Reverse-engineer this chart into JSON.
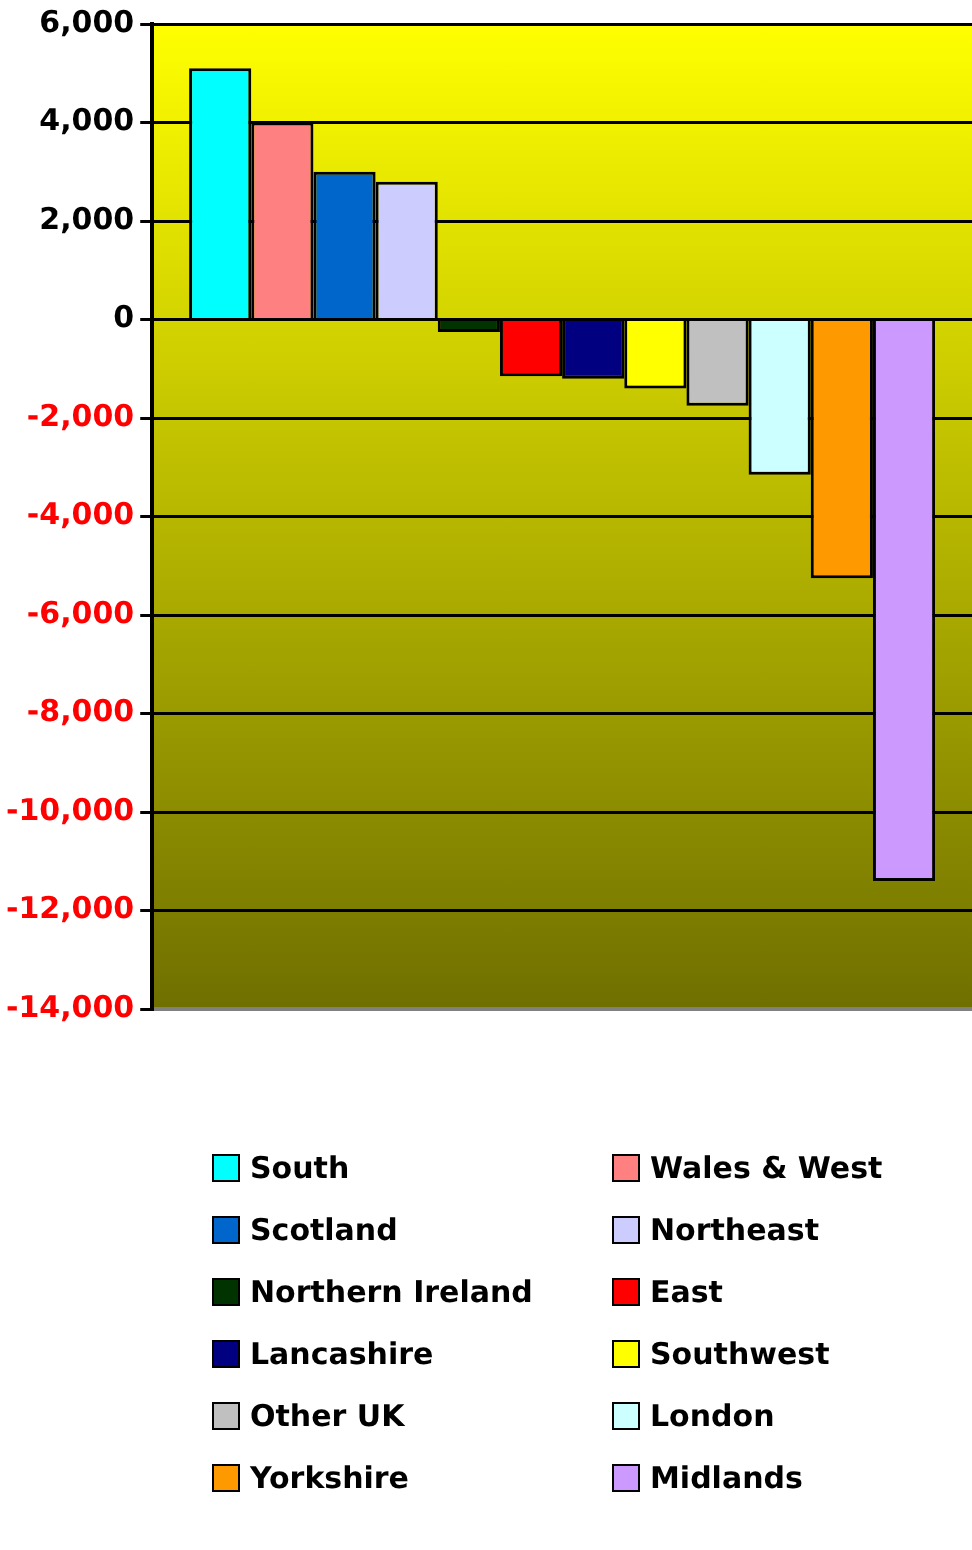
{
  "chart_data": {
    "type": "bar",
    "categories": [
      null
    ],
    "series": [
      {
        "name": "South",
        "color": "#00ffff",
        "values": [
          5100
        ]
      },
      {
        "name": "Wales & West",
        "color": "#ff8080",
        "values": [
          4000
        ]
      },
      {
        "name": "Scotland",
        "color": "#0066cc",
        "values": [
          3000
        ]
      },
      {
        "name": "Northeast",
        "color": "#ccccff",
        "values": [
          2800
        ]
      },
      {
        "name": "Northern Ireland",
        "color": "#003300",
        "values": [
          -250
        ]
      },
      {
        "name": "East",
        "color": "#ff0000",
        "values": [
          -1150
        ]
      },
      {
        "name": "Lancashire",
        "color": "#000080",
        "values": [
          -1200
        ]
      },
      {
        "name": "Southwest",
        "color": "#ffff00",
        "values": [
          -1400
        ]
      },
      {
        "name": "Other UK",
        "color": "#c0c0c0",
        "values": [
          -1750
        ]
      },
      {
        "name": "London",
        "color": "#ccffff",
        "values": [
          -3150
        ]
      },
      {
        "name": "Yorkshire",
        "color": "#ff9900",
        "values": [
          -5250
        ]
      },
      {
        "name": "Midlands",
        "color": "#cc99ff",
        "values": [
          -11400
        ]
      }
    ],
    "ylim": [
      -14000,
      6000
    ],
    "yticks": [
      {
        "value": -14000,
        "label": "-14,000"
      },
      {
        "value": -12000,
        "label": "-12,000"
      },
      {
        "value": -10000,
        "label": "-10,000"
      },
      {
        "value": -8000,
        "label": "-8,000"
      },
      {
        "value": -6000,
        "label": "-6,000"
      },
      {
        "value": -4000,
        "label": "-4,000"
      },
      {
        "value": -2000,
        "label": "-2,000"
      },
      0,
      {
        "value": 2000,
        "label": "2,000"
      },
      {
        "value": 4000,
        "label": "4,000"
      },
      {
        "value": 6000,
        "label": "6,000"
      }
    ],
    "grid": "y",
    "legend": "bottom"
  }
}
